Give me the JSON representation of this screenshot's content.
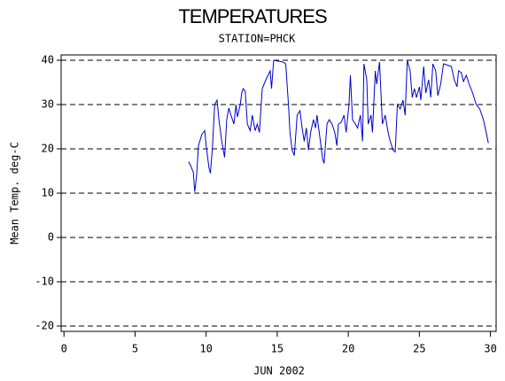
{
  "chart_data": {
    "type": "line",
    "title": "TEMPERATURES",
    "subtitle": "STATION=PHCK",
    "x_label": "JUN 2002",
    "y_label": "Mean Temp. deg-C",
    "color": "#0000cc",
    "grid": true,
    "xlim": [
      -0.2,
      30.4
    ],
    "xticks": [
      0,
      5,
      10,
      15,
      20,
      25,
      30
    ],
    "ylim": [
      -21.2,
      41.2
    ],
    "yticks": [
      -20,
      -10,
      0,
      10,
      20,
      30,
      40
    ],
    "x": [
      8.77,
      8.9,
      9.1,
      9.2,
      9.33,
      9.46,
      9.7,
      9.9,
      10.0,
      10.2,
      10.3,
      10.45,
      10.6,
      10.77,
      10.9,
      11.1,
      11.3,
      11.45,
      11.6,
      11.75,
      11.95,
      12.1,
      12.2,
      12.4,
      12.5,
      12.6,
      12.75,
      12.9,
      13.1,
      13.25,
      13.45,
      13.6,
      13.75,
      13.95,
      14.2,
      14.5,
      14.6,
      14.75,
      15.4,
      15.6,
      15.8,
      15.9,
      16.05,
      16.2,
      16.4,
      16.6,
      16.75,
      16.9,
      17.05,
      17.2,
      17.35,
      17.55,
      17.7,
      17.8,
      18.0,
      18.2,
      18.3,
      18.5,
      18.65,
      18.85,
      19.05,
      19.2,
      19.3,
      19.5,
      19.7,
      19.85,
      20.05,
      20.15,
      20.3,
      20.5,
      20.65,
      20.85,
      21.0,
      21.1,
      21.3,
      21.4,
      21.6,
      21.7,
      21.9,
      22.0,
      22.2,
      22.4,
      22.6,
      22.8,
      22.95,
      23.15,
      23.3,
      23.45,
      23.65,
      23.85,
      24.0,
      24.15,
      24.35,
      24.5,
      24.65,
      24.8,
      25.0,
      25.1,
      25.3,
      25.45,
      25.65,
      25.8,
      25.95,
      26.15,
      26.3,
      26.5,
      26.7,
      27.25,
      27.45,
      27.65,
      27.75,
      27.95,
      28.1,
      28.3,
      28.5,
      28.75,
      29.0,
      29.25,
      29.5,
      29.7,
      29.85
    ],
    "values": [
      17.1,
      16.3,
      14.7,
      10.3,
      13.9,
      20.7,
      23.3,
      24.1,
      20.7,
      15.7,
      14.5,
      20.7,
      30.0,
      31.0,
      26.6,
      21.7,
      18.1,
      26.6,
      29.2,
      27.6,
      25.6,
      30.0,
      27.2,
      30.0,
      32.6,
      33.6,
      33.0,
      25.6,
      24.1,
      27.6,
      24.1,
      25.6,
      23.7,
      33.6,
      35.6,
      37.6,
      33.6,
      40.0,
      39.6,
      39.2,
      29.7,
      23.7,
      19.7,
      18.5,
      27.6,
      28.6,
      24.7,
      21.7,
      24.7,
      19.7,
      23.7,
      26.6,
      24.7,
      27.6,
      22.7,
      17.7,
      16.7,
      25.6,
      26.6,
      25.6,
      23.7,
      20.7,
      25.6,
      26.0,
      27.6,
      23.7,
      30.0,
      36.6,
      26.6,
      25.6,
      24.7,
      27.6,
      21.7,
      39.2,
      35.6,
      25.6,
      27.6,
      23.7,
      37.6,
      34.6,
      39.6,
      25.6,
      27.6,
      23.7,
      21.7,
      19.7,
      19.3,
      30.0,
      29.0,
      31.0,
      27.6,
      40.0,
      37.6,
      31.6,
      33.6,
      31.6,
      34.0,
      31.0,
      38.6,
      32.6,
      35.6,
      31.6,
      39.2,
      37.6,
      32.0,
      34.6,
      39.2,
      38.6,
      35.6,
      34.0,
      37.6,
      37.2,
      35.2,
      36.6,
      34.6,
      32.6,
      30.0,
      29.0,
      26.6,
      23.7,
      21.3
    ]
  }
}
